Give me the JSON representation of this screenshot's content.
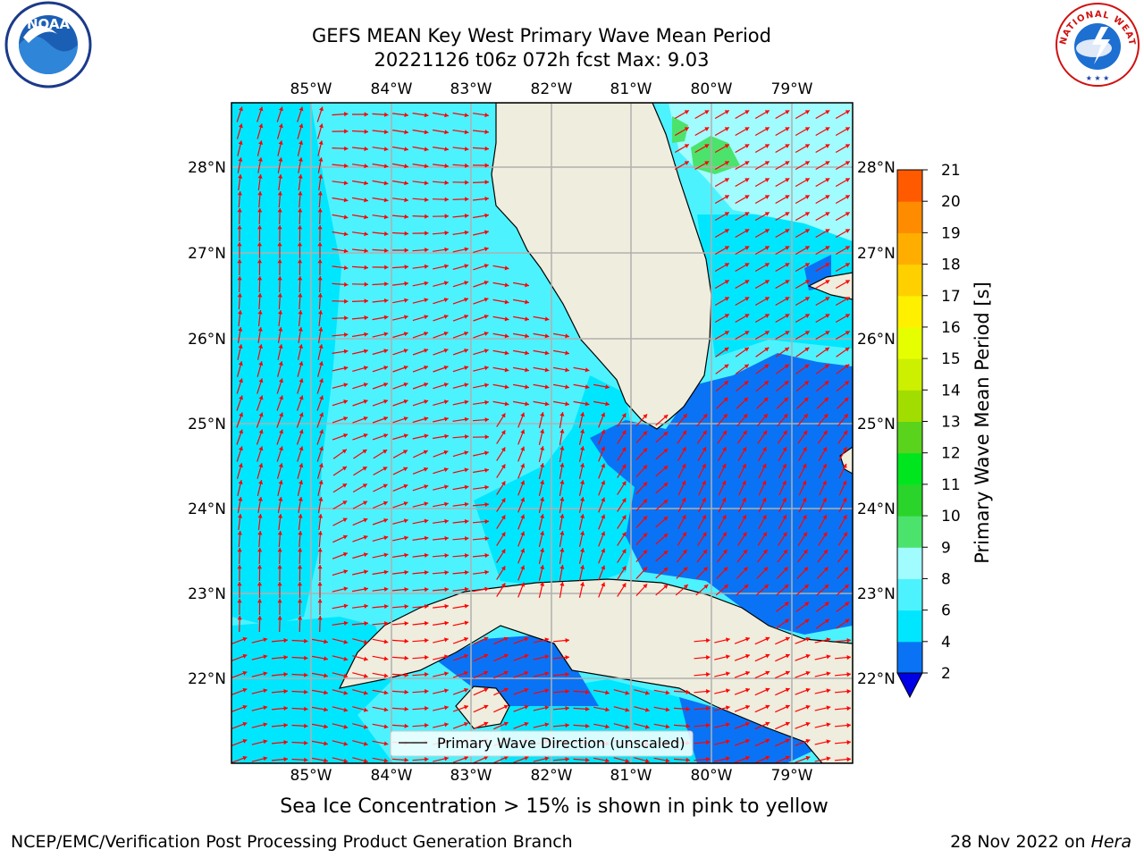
{
  "title": {
    "line1": "GEFS MEAN Key West Primary Wave Mean Period",
    "line2": "20221126 t06z 072h fcst   Max: 9.03"
  },
  "axes": {
    "lon_ticks": [
      "85°W",
      "84°W",
      "83°W",
      "82°W",
      "81°W",
      "80°W",
      "79°W"
    ],
    "lat_ticks": [
      "28°N",
      "27°N",
      "26°N",
      "25°N",
      "24°N",
      "23°N",
      "22°N"
    ]
  },
  "legend": {
    "label": "Primary Wave Direction (unscaled)"
  },
  "colorbar": {
    "label": "Primary Wave Mean Period [s]",
    "ticks": [
      "2",
      "4",
      "6",
      "8",
      "9",
      "10",
      "11",
      "12",
      "13",
      "14",
      "15",
      "16",
      "17",
      "18",
      "19",
      "20",
      "21"
    ],
    "colors": [
      "#0a73f5",
      "#00e6ff",
      "#4df2ff",
      "#a0fcff",
      "#4ce36c",
      "#2ad42a",
      "#00e61e",
      "#5ad31d",
      "#a2dd00",
      "#ccf000",
      "#e6ff00",
      "#fff000",
      "#ffd000",
      "#ffae00",
      "#ff8c00",
      "#ff5a00",
      "#ff2800",
      "#ff0000"
    ],
    "under_color": "#0000e6"
  },
  "map_colors": {
    "land": "#efeddd",
    "band_2_4": "#0a73f5",
    "band_4_6": "#00e6ff",
    "band_6_8": "#4df2ff",
    "band_8_9": "#a0fcff",
    "band_9_10": "#4ce36c",
    "arrow": "#ff0000",
    "grid": "#b0b0b0"
  },
  "logos": {
    "noaa": "NOAA",
    "nws": "NATIONAL WEATHER SERVICE"
  },
  "footer": {
    "ice_note": "Sea Ice Concentration > 15% is shown in pink to yellow",
    "branch": "NCEP/EMC/Verification Post Processing Product Generation Branch",
    "date_text": "28 Nov 2022 on",
    "date_host": "Hera"
  }
}
